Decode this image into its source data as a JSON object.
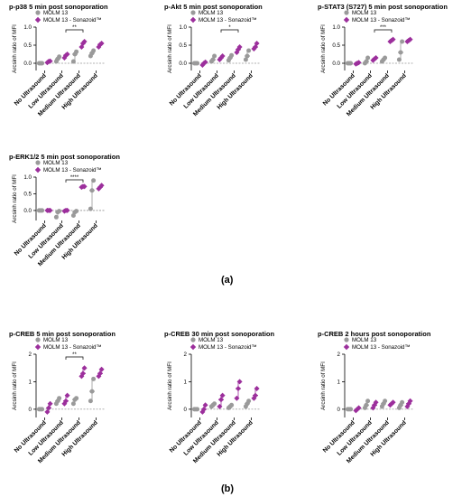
{
  "figure": {
    "label_a": "(a)",
    "label_b": "(b)"
  },
  "colors": {
    "control": "#9a9a9a",
    "treated": "#9c2f9c",
    "axis": "#000000"
  },
  "chart_data": [
    {
      "type": "scatter",
      "title": "p-p38 5 min post sonoporation",
      "ylabel": "Arcsinh ratio of MFI",
      "ylim": [
        -0.2,
        1.0
      ],
      "yticks": [
        "0.0",
        "0.5",
        "1.0"
      ],
      "categories": [
        "No Ultrasound",
        "Low Ultrasound",
        "Medium Ultrasound",
        "High Ultrasound"
      ],
      "legend": [
        "MOLM 13",
        "MOLM 13 - Sonazoid™"
      ],
      "significance": [
        {
          "from": 1,
          "to": 2,
          "label": "**"
        }
      ],
      "series": [
        {
          "name": "MOLM 13",
          "points": [
            [
              0.0,
              0.0,
              0.0
            ],
            [
              0.05,
              0.12,
              0.18
            ],
            [
              0.05,
              0.25,
              0.32
            ],
            [
              0.2,
              0.28,
              0.35
            ]
          ]
        },
        {
          "name": "MOLM 13 - Sonazoid™",
          "points": [
            [
              0.02,
              0.05,
              0.06
            ],
            [
              0.15,
              0.22,
              0.25
            ],
            [
              0.45,
              0.55,
              0.6
            ],
            [
              0.45,
              0.52,
              0.55
            ]
          ]
        }
      ]
    },
    {
      "type": "scatter",
      "title": "p-Akt 5 min post sonoporation",
      "ylabel": "Arcsinh ratio of MFI",
      "ylim": [
        -0.2,
        1.0
      ],
      "yticks": [
        "0.0",
        "0.5",
        "1.0"
      ],
      "categories": [
        "No Ultrasound",
        "Low Ultrasound",
        "Medium Ultrasound",
        "High Ultrasound"
      ],
      "legend": [
        "MOLM 13",
        "MOLM 13 - Sonazoid™"
      ],
      "significance": [
        {
          "from": 1,
          "to": 2,
          "label": "*"
        }
      ],
      "series": [
        {
          "name": "MOLM 13",
          "points": [
            [
              0.0,
              0.0,
              0.0
            ],
            [
              0.05,
              0.1,
              0.2
            ],
            [
              0.08,
              0.15,
              0.22
            ],
            [
              0.1,
              0.2,
              0.35
            ]
          ]
        },
        {
          "name": "MOLM 13 - Sonazoid™",
          "points": [
            [
              -0.05,
              0.0,
              0.03
            ],
            [
              0.1,
              0.15,
              0.2
            ],
            [
              0.3,
              0.38,
              0.45
            ],
            [
              0.4,
              0.45,
              0.55
            ]
          ]
        }
      ]
    },
    {
      "type": "scatter",
      "title": "p-STAT3 (S727) 5 min post sonoporation",
      "ylabel": "Arcsinh ratio of MFI",
      "ylim": [
        -0.2,
        1.0
      ],
      "yticks": [
        "0.0",
        "0.5",
        "1.0"
      ],
      "categories": [
        "No Ultrasound",
        "Low Ultrasound",
        "Medium Ultrasound",
        "High Ultrasound"
      ],
      "legend": [
        "MOLM 13",
        "MOLM 13 - Sonazoid™"
      ],
      "significance": [
        {
          "from": 1,
          "to": 2,
          "label": "***"
        }
      ],
      "series": [
        {
          "name": "MOLM 13",
          "points": [
            [
              0.0,
              0.0,
              0.0
            ],
            [
              0.0,
              0.05,
              0.15
            ],
            [
              0.05,
              0.1,
              0.15
            ],
            [
              0.1,
              0.3,
              0.6
            ]
          ]
        },
        {
          "name": "MOLM 13 - Sonazoid™",
          "points": [
            [
              -0.02,
              0.0,
              0.02
            ],
            [
              0.08,
              0.12,
              0.15
            ],
            [
              0.6,
              0.63,
              0.66
            ],
            [
              0.6,
              0.63,
              0.66
            ]
          ]
        }
      ]
    },
    {
      "type": "scatter",
      "title": "p-ERK1/2 5 min post sonoporation",
      "ylabel": "Arcsinh ratio of MFI",
      "ylim": [
        -0.3,
        1.0
      ],
      "yticks": [
        "0.0",
        "0.5",
        "1.0"
      ],
      "categories": [
        "No Ultrasound",
        "Low Ultrasound",
        "Medium Ultrasound",
        "High Ultrasound"
      ],
      "legend": [
        "MOLM 13",
        "MOLM 13 - Sonazoid™"
      ],
      "significance": [
        {
          "from": 1,
          "to": 2,
          "label": "****"
        }
      ],
      "series": [
        {
          "name": "MOLM 13",
          "points": [
            [
              0.0,
              0.0,
              0.0
            ],
            [
              -0.2,
              -0.05,
              -0.02
            ],
            [
              -0.15,
              -0.05,
              -0.02
            ],
            [
              0.05,
              0.6,
              0.9
            ]
          ]
        },
        {
          "name": "MOLM 13 - Sonazoid™",
          "points": [
            [
              0.0,
              0.0,
              0.0
            ],
            [
              -0.02,
              0.0,
              0.0
            ],
            [
              0.7,
              0.72,
              0.72
            ],
            [
              0.65,
              0.7,
              0.75
            ]
          ]
        }
      ]
    },
    {
      "type": "scatter",
      "title": "p-CREB 5 min post sonoporation",
      "ylabel": "Arcsinh ratio of MFI",
      "ylim": [
        -0.3,
        2.0
      ],
      "yticks": [
        "0",
        "1",
        "2"
      ],
      "categories": [
        "No Ultrasound",
        "Low Ultrasound",
        "Medium Ultrasound",
        "High Ultrasound"
      ],
      "legend": [
        "MOLM 13",
        "MOLM 13 - Sonazoid™"
      ],
      "significance": [
        {
          "from": 1,
          "to": 2,
          "label": "**"
        }
      ],
      "series": [
        {
          "name": "MOLM 13",
          "points": [
            [
              0.0,
              0.0,
              0.0
            ],
            [
              0.2,
              0.3,
              0.4
            ],
            [
              0.2,
              0.35,
              0.4
            ],
            [
              0.3,
              0.65,
              1.1
            ]
          ]
        },
        {
          "name": "MOLM 13 - Sonazoid™",
          "points": [
            [
              -0.1,
              0.05,
              0.2
            ],
            [
              0.2,
              0.3,
              0.5
            ],
            [
              1.2,
              1.3,
              1.5
            ],
            [
              1.2,
              1.3,
              1.45
            ]
          ]
        }
      ]
    },
    {
      "type": "scatter",
      "title": "p-CREB 30 min post sonoporation",
      "ylabel": "Arcsinh ratio of MFI",
      "ylim": [
        -0.3,
        2.0
      ],
      "yticks": [
        "0",
        "1",
        "2"
      ],
      "categories": [
        "No Ultrasound",
        "Low Ultrasound",
        "Medium Ultrasound",
        "High Ultrasound"
      ],
      "legend": [
        "MOLM 13",
        "MOLM 13 - Sonazoid™"
      ],
      "significance": [],
      "series": [
        {
          "name": "MOLM 13",
          "points": [
            [
              0.0,
              0.0,
              0.0
            ],
            [
              0.1,
              0.15,
              0.2
            ],
            [
              0.05,
              0.1,
              0.15
            ],
            [
              0.1,
              0.2,
              0.3
            ]
          ]
        },
        {
          "name": "MOLM 13 - Sonazoid™",
          "points": [
            [
              -0.1,
              0.0,
              0.15
            ],
            [
              0.1,
              0.35,
              0.5
            ],
            [
              0.4,
              0.75,
              1.0
            ],
            [
              0.4,
              0.5,
              0.75
            ]
          ]
        }
      ]
    },
    {
      "type": "scatter",
      "title": "p-CREB 2 hours post sonoporation",
      "ylabel": "Arcsinh ratio of MFI",
      "ylim": [
        -0.3,
        2.0
      ],
      "yticks": [
        "0",
        "1",
        "2"
      ],
      "categories": [
        "No Ultrasound",
        "Low Ultrasound",
        "Medium Ultrasound",
        "High Ultrasound"
      ],
      "legend": [
        "MOLM 13",
        "MOLM 13 - Sonazoid™"
      ],
      "significance": [],
      "series": [
        {
          "name": "MOLM 13",
          "points": [
            [
              0.0,
              0.0,
              0.0
            ],
            [
              0.05,
              0.15,
              0.3
            ],
            [
              0.1,
              0.2,
              0.3
            ],
            [
              0.05,
              0.15,
              0.25
            ]
          ]
        },
        {
          "name": "MOLM 13 - Sonazoid™",
          "points": [
            [
              -0.05,
              0.0,
              0.05
            ],
            [
              0.05,
              0.15,
              0.25
            ],
            [
              0.15,
              0.2,
              0.25
            ],
            [
              0.1,
              0.2,
              0.3
            ]
          ]
        }
      ]
    }
  ]
}
